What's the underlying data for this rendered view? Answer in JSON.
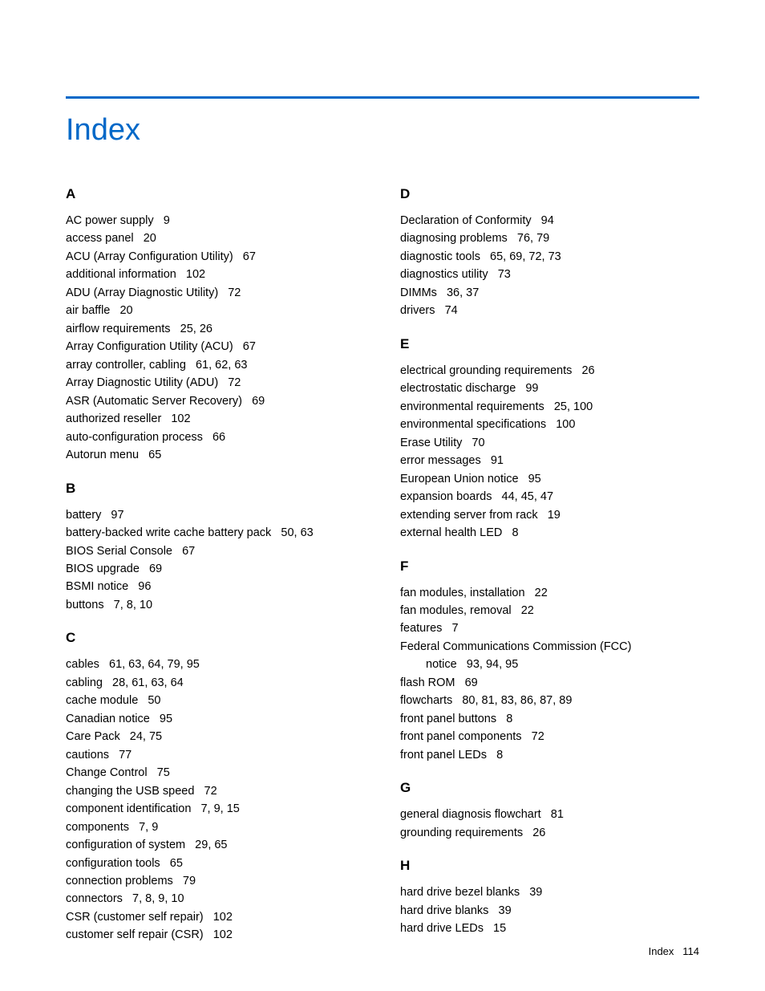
{
  "title": "Index",
  "colors": {
    "accent": "#0068c8",
    "text": "#000000",
    "background": "#ffffff"
  },
  "footer": {
    "label": "Index",
    "page_number": "114"
  },
  "left_column": [
    {
      "letter": "A",
      "entries": [
        {
          "term": "AC power supply",
          "pages": "9"
        },
        {
          "term": "access panel",
          "pages": "20"
        },
        {
          "term": "ACU (Array Configuration Utility)",
          "pages": "67"
        },
        {
          "term": "additional information",
          "pages": "102"
        },
        {
          "term": "ADU (Array Diagnostic Utility)",
          "pages": "72"
        },
        {
          "term": "air baffle",
          "pages": "20"
        },
        {
          "term": "airflow requirements",
          "pages": "25, 26"
        },
        {
          "term": "Array Configuration Utility (ACU)",
          "pages": "67"
        },
        {
          "term": "array controller, cabling",
          "pages": "61, 62, 63"
        },
        {
          "term": "Array Diagnostic Utility (ADU)",
          "pages": "72"
        },
        {
          "term": "ASR (Automatic Server Recovery)",
          "pages": "69"
        },
        {
          "term": "authorized reseller",
          "pages": "102"
        },
        {
          "term": "auto-configuration process",
          "pages": "66"
        },
        {
          "term": "Autorun menu",
          "pages": "65"
        }
      ]
    },
    {
      "letter": "B",
      "entries": [
        {
          "term": "battery",
          "pages": "97"
        },
        {
          "term": "battery-backed write cache battery pack",
          "pages": "50, 63"
        },
        {
          "term": "BIOS Serial Console",
          "pages": "67"
        },
        {
          "term": "BIOS upgrade",
          "pages": "69"
        },
        {
          "term": "BSMI notice",
          "pages": "96"
        },
        {
          "term": "buttons",
          "pages": "7, 8, 10"
        }
      ]
    },
    {
      "letter": "C",
      "entries": [
        {
          "term": "cables",
          "pages": "61, 63, 64, 79, 95"
        },
        {
          "term": "cabling",
          "pages": "28, 61, 63, 64"
        },
        {
          "term": "cache module",
          "pages": "50"
        },
        {
          "term": "Canadian notice",
          "pages": "95"
        },
        {
          "term": "Care Pack",
          "pages": "24, 75"
        },
        {
          "term": "cautions",
          "pages": "77"
        },
        {
          "term": "Change Control",
          "pages": "75"
        },
        {
          "term": "changing the USB speed",
          "pages": "72"
        },
        {
          "term": "component identification",
          "pages": "7, 9, 15"
        },
        {
          "term": "components",
          "pages": "7, 9"
        },
        {
          "term": "configuration of system",
          "pages": "29, 65"
        },
        {
          "term": "configuration tools",
          "pages": "65"
        },
        {
          "term": "connection problems",
          "pages": "79"
        },
        {
          "term": "connectors",
          "pages": "7, 8, 9, 10"
        },
        {
          "term": "CSR (customer self repair)",
          "pages": "102"
        },
        {
          "term": "customer self repair (CSR)",
          "pages": "102"
        }
      ]
    }
  ],
  "right_column": [
    {
      "letter": "D",
      "entries": [
        {
          "term": "Declaration of Conformity",
          "pages": "94"
        },
        {
          "term": "diagnosing problems",
          "pages": "76, 79"
        },
        {
          "term": "diagnostic tools",
          "pages": "65, 69, 72, 73"
        },
        {
          "term": "diagnostics utility",
          "pages": "73"
        },
        {
          "term": "DIMMs",
          "pages": "36, 37"
        },
        {
          "term": "drivers",
          "pages": "74"
        }
      ]
    },
    {
      "letter": "E",
      "entries": [
        {
          "term": "electrical grounding requirements",
          "pages": "26"
        },
        {
          "term": "electrostatic discharge",
          "pages": "99"
        },
        {
          "term": "environmental requirements",
          "pages": "25, 100"
        },
        {
          "term": "environmental specifications",
          "pages": "100"
        },
        {
          "term": "Erase Utility",
          "pages": "70"
        },
        {
          "term": "error messages",
          "pages": "91"
        },
        {
          "term": "European Union notice",
          "pages": "95"
        },
        {
          "term": "expansion boards",
          "pages": "44, 45, 47"
        },
        {
          "term": "extending server from rack",
          "pages": "19"
        },
        {
          "term": "external health LED",
          "pages": "8"
        }
      ]
    },
    {
      "letter": "F",
      "entries": [
        {
          "term": "fan modules, installation",
          "pages": "22"
        },
        {
          "term": "fan modules, removal",
          "pages": "22"
        },
        {
          "term": "features",
          "pages": "7"
        },
        {
          "term": "Federal Communications Commission (FCC)",
          "pages": ""
        },
        {
          "term": "notice",
          "pages": "93, 94, 95",
          "indented": true
        },
        {
          "term": "flash ROM",
          "pages": "69"
        },
        {
          "term": "flowcharts",
          "pages": "80, 81, 83, 86, 87, 89"
        },
        {
          "term": "front panel buttons",
          "pages": "8"
        },
        {
          "term": "front panel components",
          "pages": "72"
        },
        {
          "term": "front panel LEDs",
          "pages": "8"
        }
      ]
    },
    {
      "letter": "G",
      "entries": [
        {
          "term": "general diagnosis flowchart",
          "pages": "81"
        },
        {
          "term": "grounding requirements",
          "pages": "26"
        }
      ]
    },
    {
      "letter": "H",
      "entries": [
        {
          "term": "hard drive bezel blanks",
          "pages": "39"
        },
        {
          "term": "hard drive blanks",
          "pages": "39"
        },
        {
          "term": "hard drive LEDs",
          "pages": "15"
        }
      ]
    }
  ]
}
